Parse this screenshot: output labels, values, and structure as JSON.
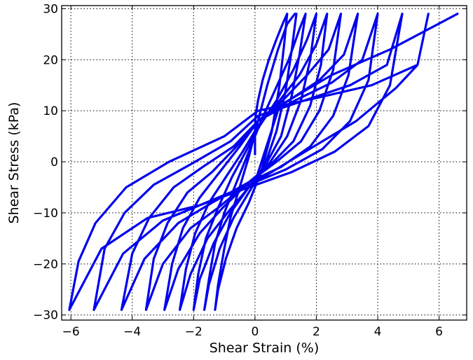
{
  "chart_data": {
    "type": "line",
    "title": "",
    "xlabel": "Shear Strain (%)",
    "ylabel": "Shear Stress (kPa)",
    "xlim": [
      -6.3,
      6.9
    ],
    "ylim": [
      -31,
      30.6
    ],
    "xticks": [
      -6,
      -4,
      -2,
      0,
      2,
      4,
      6
    ],
    "xtick_labels": [
      "−6",
      "−4",
      "−2",
      "0",
      "2",
      "4",
      "6"
    ],
    "yticks": [
      -30,
      -20,
      -10,
      0,
      10,
      20,
      30
    ],
    "ytick_labels": [
      "−30",
      "−20",
      "−10",
      "0",
      "10",
      "20",
      "30"
    ],
    "grid": true,
    "legend": "none",
    "series": [
      {
        "color": "#0000ee",
        "x": [
          0.0,
          0.0,
          0.02,
          0.1,
          0.25,
          0.45,
          0.7,
          0.9,
          1.05,
          1.05,
          0.95,
          0.8,
          0.55,
          0.2,
          -0.2,
          -0.6,
          -0.95,
          -1.2,
          -1.3,
          -1.3,
          -1.2,
          -1.0,
          -0.8,
          -0.5,
          -0.2,
          0.1,
          0.4,
          0.75,
          1.05,
          1.3,
          1.35,
          1.2,
          1.0,
          0.7,
          0.3,
          -0.2,
          -0.7,
          -1.15,
          -1.5,
          -1.65,
          -1.65,
          -1.5,
          -1.3,
          -1.0,
          -0.6,
          -0.2,
          0.2,
          0.65,
          1.1,
          1.45,
          1.65,
          1.65,
          1.45,
          1.2,
          0.85,
          0.4,
          -0.2,
          -0.8,
          -1.35,
          -1.8,
          -2.0,
          -2.0,
          -1.85,
          -1.6,
          -1.2,
          -0.75,
          -0.3,
          0.15,
          0.7,
          1.25,
          1.7,
          2.0,
          2.0,
          1.8,
          1.5,
          1.05,
          0.5,
          -0.2,
          -0.9,
          -1.55,
          -2.1,
          -2.45,
          -2.45,
          -2.25,
          -1.95,
          -1.5,
          -0.95,
          -0.4,
          0.1,
          0.8,
          1.45,
          2.0,
          2.35,
          2.35,
          2.15,
          1.8,
          1.25,
          0.6,
          -0.2,
          -1.05,
          -1.8,
          -2.5,
          -2.95,
          -2.95,
          -2.7,
          -2.35,
          -1.8,
          -1.15,
          -0.5,
          0.1,
          0.9,
          1.7,
          2.4,
          2.8,
          2.8,
          2.55,
          2.1,
          1.5,
          0.7,
          -0.2,
          -1.2,
          -2.1,
          -3.0,
          -3.55,
          -3.55,
          -3.3,
          -2.85,
          -2.2,
          -1.4,
          -0.6,
          0.1,
          1.1,
          2.1,
          2.9,
          3.35,
          3.35,
          3.05,
          2.55,
          1.8,
          0.85,
          -0.2,
          -1.4,
          -2.5,
          -3.6,
          -4.35,
          -4.35,
          -4.0,
          -3.45,
          -2.65,
          -1.7,
          -0.7,
          0.1,
          1.3,
          2.5,
          3.5,
          4.0,
          4.0,
          3.7,
          3.1,
          2.2,
          1.0,
          -0.2,
          -1.6,
          -3.0,
          -4.3,
          -5.25,
          -5.25,
          -4.9,
          -4.25,
          -3.3,
          -2.1,
          -0.8,
          0.1,
          1.6,
          3.1,
          4.3,
          4.8,
          4.8,
          4.4,
          3.7,
          2.6,
          1.2,
          -0.2,
          -1.8,
          -3.5,
          -5.0,
          -6.05,
          -6.05,
          -5.75,
          -5.2,
          -4.2,
          -2.8,
          -1.0,
          0.1,
          2.0,
          3.8,
          5.3,
          5.65,
          5.65,
          5.3,
          4.6,
          3.3,
          1.5,
          0.0,
          0.8,
          2.5,
          4.4,
          6.6
        ],
        "y": [
          1.5,
          6.0,
          9.0,
          12.0,
          16.0,
          20.0,
          24.0,
          27.0,
          29.0,
          29.0,
          23.0,
          15.0,
          6.0,
          -2.0,
          -8.0,
          -13.0,
          -19.0,
          -25.0,
          -29.0,
          -29.0,
          -24.0,
          -17.0,
          -11.0,
          -5.0,
          1.0,
          8.0,
          15.0,
          22.0,
          27.0,
          29.0,
          29.0,
          22.0,
          14.0,
          6.0,
          -1.0,
          -6.0,
          -11.0,
          -17.0,
          -24.0,
          -29.0,
          -29.0,
          -23.0,
          -16.0,
          -10.0,
          -4.0,
          2.0,
          8.0,
          14.0,
          20.0,
          26.0,
          29.0,
          29.0,
          21.0,
          13.0,
          5.0,
          0.0,
          -5.0,
          -10.0,
          -16.0,
          -23.0,
          -29.0,
          -29.0,
          -22.0,
          -15.0,
          -9.0,
          -3.0,
          2.0,
          7.0,
          12.0,
          18.0,
          24.0,
          29.0,
          29.0,
          20.0,
          12.0,
          5.0,
          0.0,
          -5.0,
          -10.0,
          -15.0,
          -22.0,
          -29.0,
          -29.0,
          -21.0,
          -14.0,
          -8.0,
          -3.0,
          2.0,
          7.0,
          12.0,
          17.0,
          23.0,
          29.0,
          29.0,
          19.0,
          11.0,
          4.0,
          0.0,
          -4.0,
          -9.0,
          -14.0,
          -21.0,
          -29.0,
          -29.0,
          -20.0,
          -13.0,
          -7.0,
          -2.0,
          3.0,
          8.0,
          12.0,
          17.0,
          22.0,
          29.0,
          29.0,
          18.0,
          10.0,
          4.0,
          0.0,
          -4.0,
          -9.0,
          -13.0,
          -20.0,
          -29.0,
          -29.0,
          -19.0,
          -12.0,
          -6.0,
          -2.0,
          3.0,
          8.0,
          12.0,
          16.0,
          21.0,
          29.0,
          29.0,
          17.0,
          9.0,
          3.0,
          -1.0,
          -4.0,
          -8.0,
          -12.0,
          -19.0,
          -29.0,
          -29.0,
          -18.0,
          -11.0,
          -5.0,
          -1.0,
          3.0,
          8.0,
          12.0,
          15.5,
          20.0,
          29.0,
          29.0,
          16.0,
          8.0,
          2.5,
          -1.5,
          -4.5,
          -8.0,
          -11.5,
          -18.0,
          -29.0,
          -29.0,
          -17.0,
          -10.0,
          -4.5,
          -0.5,
          4.0,
          9.0,
          12.0,
          15.0,
          19.0,
          29.0,
          29.0,
          15.0,
          7.0,
          2.0,
          -2.0,
          -5.0,
          -8.5,
          -11.0,
          -17.0,
          -29.0,
          -29.0,
          -19.5,
          -12.0,
          -5.0,
          0.0,
          5.0,
          10.0,
          12.5,
          15.0,
          19.0,
          29.0,
          29.0,
          19.0,
          14.5,
          8.0,
          1.5,
          -4.0,
          11.0,
          17.0,
          22.0,
          29.0
        ]
      }
    ]
  }
}
